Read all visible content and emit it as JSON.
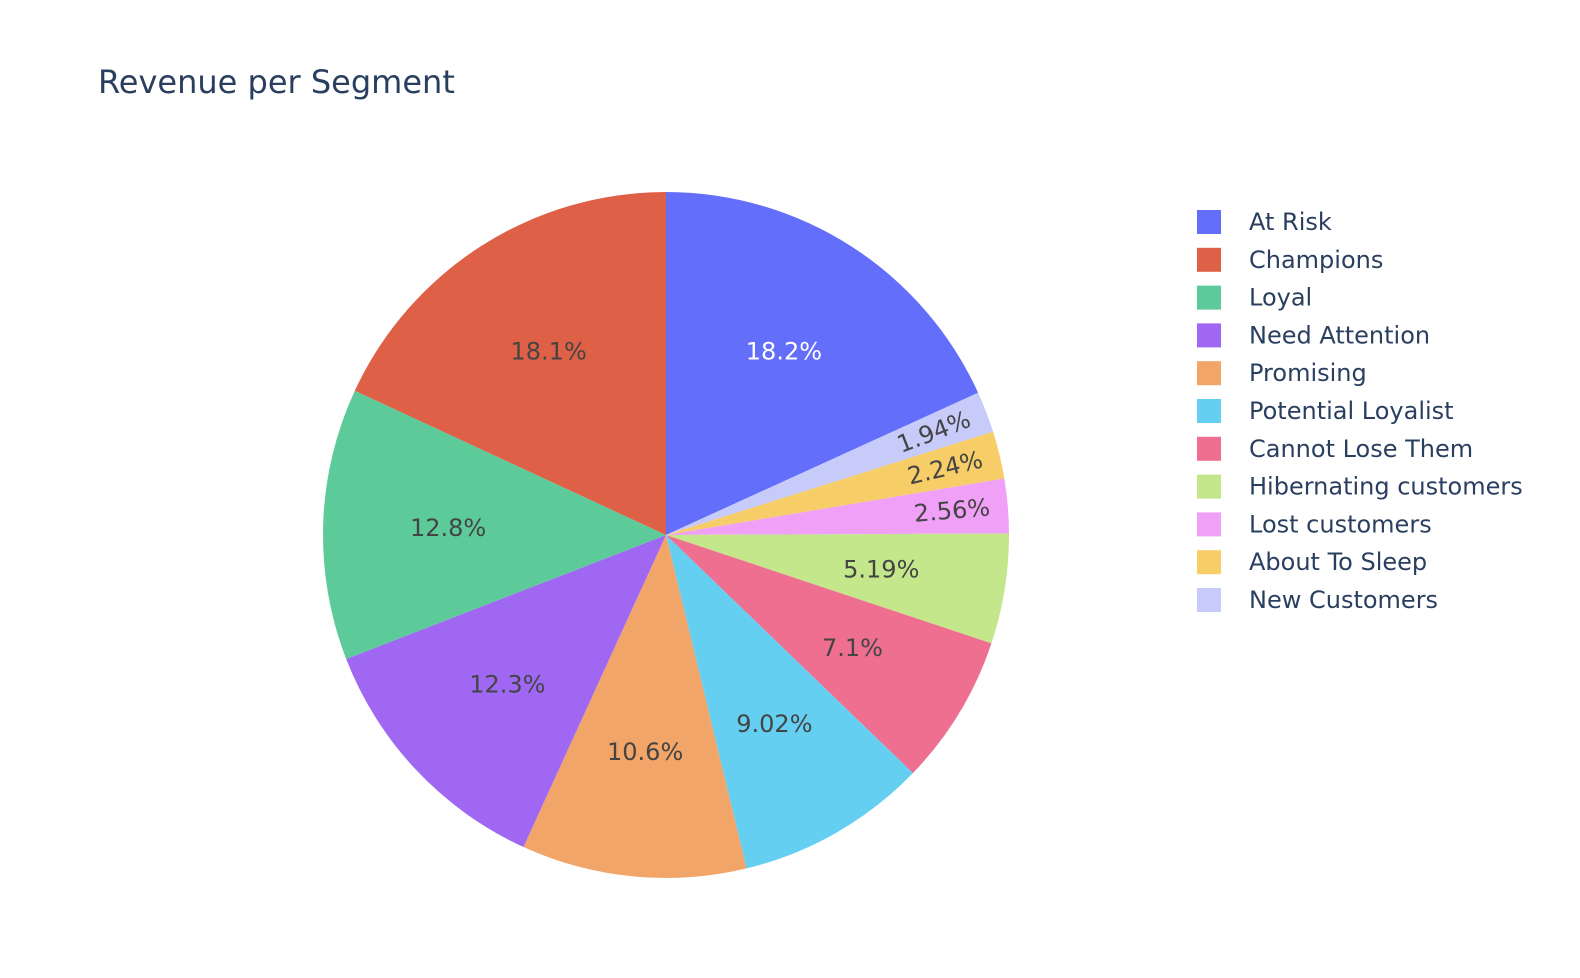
{
  "chart_data": {
    "type": "pie",
    "title": "Revenue per Segment",
    "legend_position": "right",
    "direction": "clockwise",
    "start_angle_deg": 90,
    "slices": [
      {
        "label": "At Risk",
        "value": 18.2,
        "text": "18.2%",
        "color": "#636efa",
        "text_color": "#ffffff"
      },
      {
        "label": "New Customers",
        "value": 1.94,
        "text": "1.94%",
        "color": "#c6cbfa",
        "text_color": "#444444"
      },
      {
        "label": "About To Sleep",
        "value": 2.24,
        "text": "2.24%",
        "color": "#f7cd68",
        "text_color": "#444444"
      },
      {
        "label": "Lost customers",
        "value": 2.56,
        "text": "2.56%",
        "color": "#f0a0f6",
        "text_color": "#444444"
      },
      {
        "label": "Hibernating customers",
        "value": 5.19,
        "text": "5.19%",
        "color": "#c3e78a",
        "text_color": "#444444"
      },
      {
        "label": "Cannot Lose Them",
        "value": 7.1,
        "text": "7.1%",
        "color": "#ee6f90",
        "text_color": "#444444"
      },
      {
        "label": "Potential Loyalist",
        "value": 9.02,
        "text": "9.02%",
        "color": "#64cff0",
        "text_color": "#444444"
      },
      {
        "label": "Promising",
        "value": 10.6,
        "text": "10.6%",
        "color": "#f2a568",
        "text_color": "#444444"
      },
      {
        "label": "Need Attention",
        "value": 12.3,
        "text": "12.3%",
        "color": "#a068f2",
        "text_color": "#444444"
      },
      {
        "label": "Loyal",
        "value": 12.8,
        "text": "12.8%",
        "color": "#5dcb99",
        "text_color": "#444444"
      },
      {
        "label": "Champions",
        "value": 18.1,
        "text": "18.1%",
        "color": "#de6047",
        "text_color": "#444444"
      }
    ],
    "legend": [
      {
        "label": "At Risk",
        "color": "#636efa"
      },
      {
        "label": "Champions",
        "color": "#de6047"
      },
      {
        "label": "Loyal",
        "color": "#5dcb99"
      },
      {
        "label": "Need Attention",
        "color": "#a068f2"
      },
      {
        "label": "Promising",
        "color": "#f2a568"
      },
      {
        "label": "Potential Loyalist",
        "color": "#64cff0"
      },
      {
        "label": "Cannot Lose Them",
        "color": "#ee6f90"
      },
      {
        "label": "Hibernating customers",
        "color": "#c3e78a"
      },
      {
        "label": "Lost customers",
        "color": "#f0a0f6"
      },
      {
        "label": "About To Sleep",
        "color": "#f7cd68"
      },
      {
        "label": "New Customers",
        "color": "#c6cbfa"
      }
    ]
  }
}
